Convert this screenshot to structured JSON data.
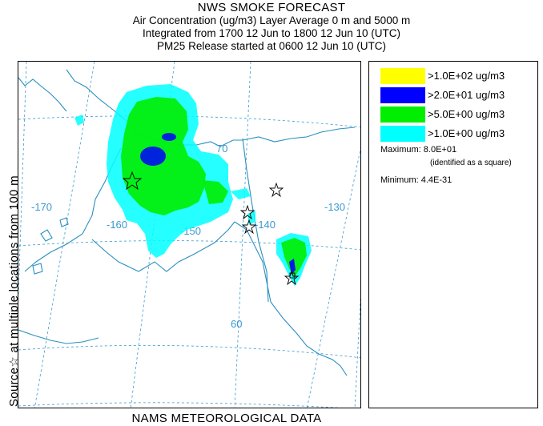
{
  "header": {
    "title": "NWS SMOKE FORECAST",
    "line2": "Air Concentration (ug/m3) Layer Average    0 m and  5000 m",
    "line3": "Integrated from 1700 12 Jun to 1800 12 Jun 10 (UTC)",
    "line4": "PM25 Release started at 0600 12 Jun 10 (UTC)"
  },
  "side_label": "Source☆ at multiple locations    from   100 m",
  "footer": "NAMS METEOROLOGICAL DATA",
  "map": {
    "lat_labels": [
      "70",
      "60"
    ],
    "lon_labels": [
      "-170",
      "-160",
      "-150",
      "-140",
      "-130"
    ]
  },
  "legend": {
    "items": [
      {
        "label": ">1.0E+02 ug/m3",
        "color": "#ffff00"
      },
      {
        "label": ">2.0E+01 ug/m3",
        "color": "#0000ff"
      },
      {
        "label": ">5.0E+00 ug/m3",
        "color": "#00ff00"
      },
      {
        "label": ">1.0E+00 ug/m3",
        "color": "#00ffff"
      }
    ],
    "maximum_label": "Maximum: 8.0E+01",
    "maximum_note": "(identified as a square)",
    "minimum_label": "Minimum: 4.4E-31"
  },
  "colors": {
    "coast": "#2a8fc0",
    "grid": "#3a9ad0",
    "label": "#3a9ad0"
  }
}
